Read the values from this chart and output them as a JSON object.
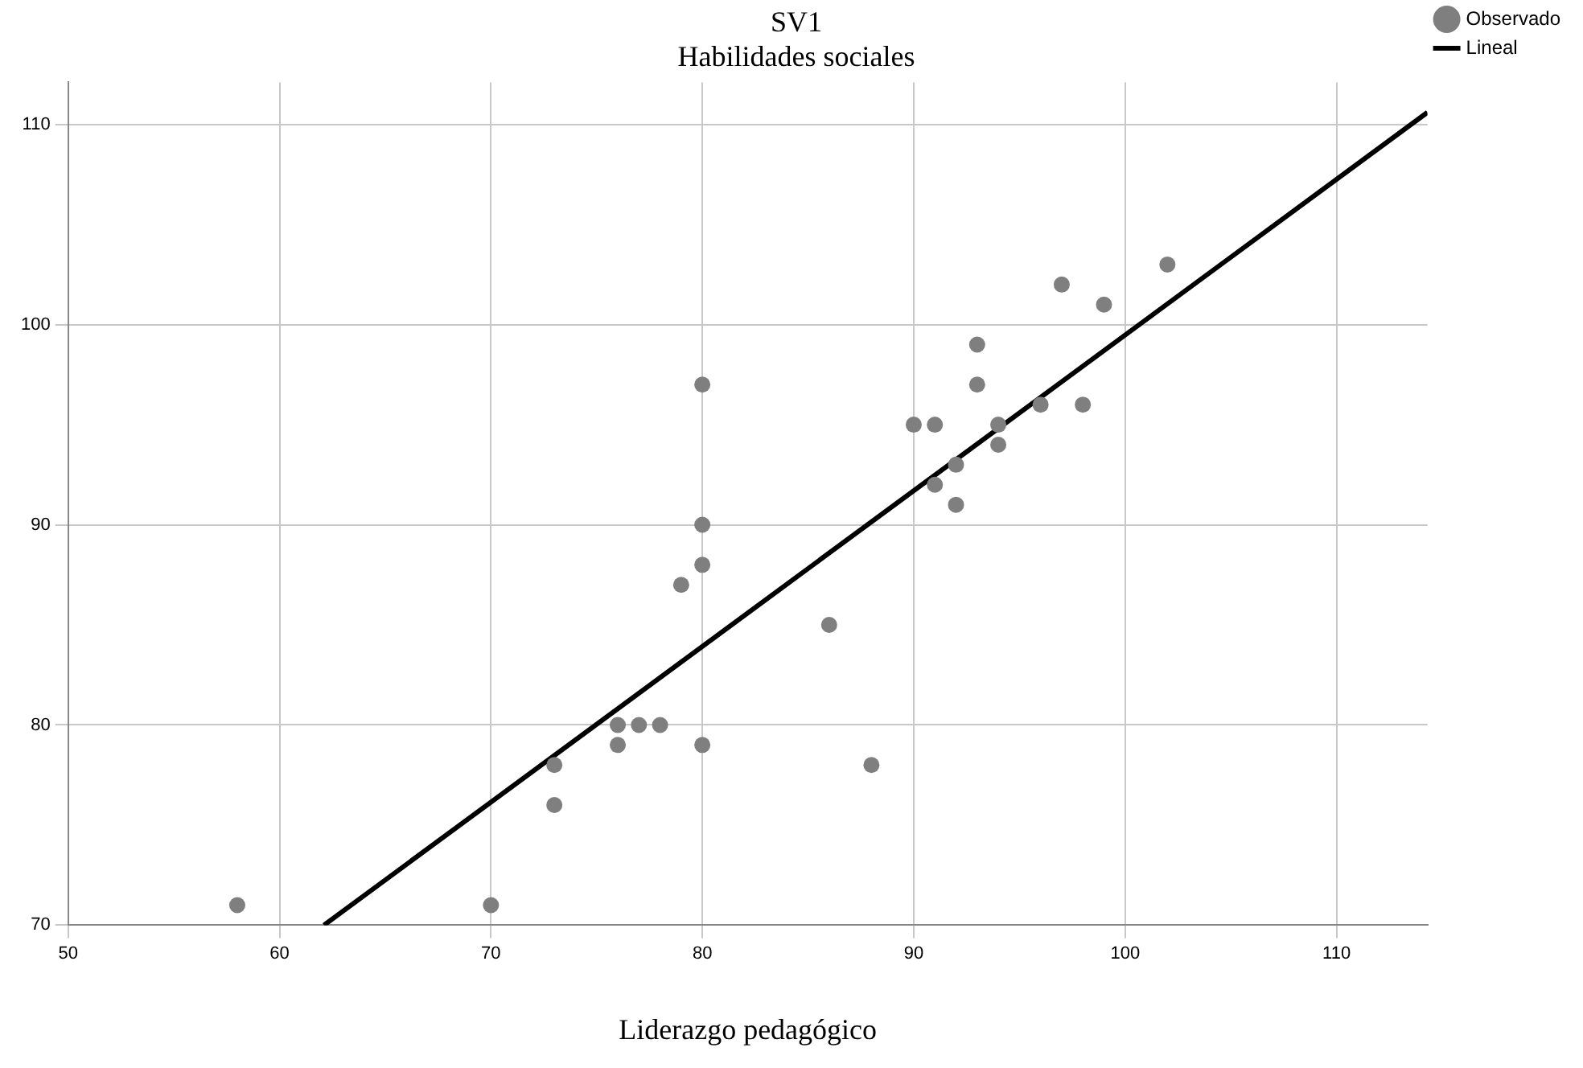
{
  "chart_data": {
    "type": "scatter",
    "title": "SV1",
    "ylabel": "Habilidades sociales",
    "xlabel": "Liderazgo pedagógico",
    "xlim": [
      50,
      114.3
    ],
    "xticks": [
      50,
      60,
      70,
      80,
      90,
      100,
      110
    ],
    "ylim": [
      70,
      112.1
    ],
    "yticks": [
      70,
      80,
      90,
      100,
      110
    ],
    "grid": true,
    "legend": "top right",
    "marker": "circle",
    "series": [
      {
        "name": "Observado",
        "color": "#7f7f7f",
        "x": [
          58,
          70,
          73,
          73,
          76,
          76,
          77,
          78,
          79,
          80,
          80,
          80,
          80,
          86,
          88,
          90,
          91,
          91,
          92,
          92,
          93,
          93,
          94,
          94,
          96,
          97,
          98,
          99,
          102
        ],
        "values": [
          71,
          71,
          78,
          76,
          80,
          79,
          80,
          80,
          87,
          97,
          90,
          88,
          79,
          85,
          78,
          95,
          95,
          92,
          93,
          91,
          99,
          97,
          95,
          94,
          96,
          102,
          96,
          101,
          103
        ]
      },
      {
        "name": "Lineal",
        "type": "line",
        "color": "#000000",
        "marker": "none",
        "x": [
          62.1,
          114.3
        ],
        "values": [
          70,
          110.6
        ]
      }
    ]
  }
}
